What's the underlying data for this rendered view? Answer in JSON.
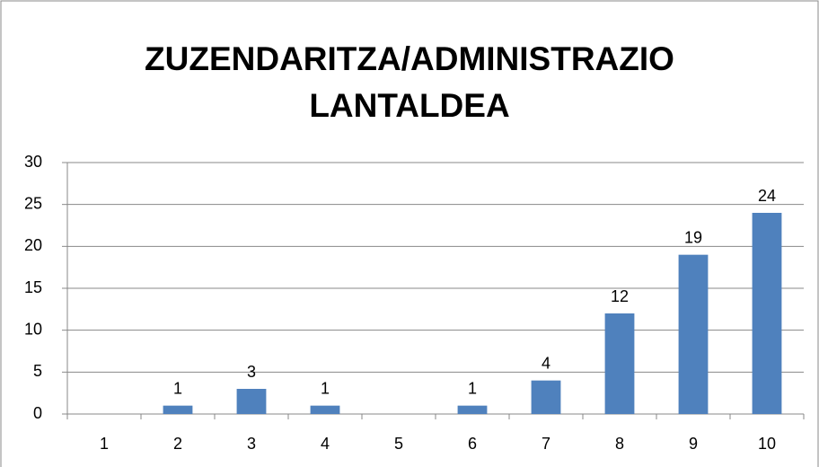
{
  "chart_data": {
    "type": "bar",
    "title": "ZUZENDARITZA/ADMINISTRAZIO LANTALDEA",
    "categories": [
      "1",
      "2",
      "3",
      "4",
      "5",
      "6",
      "7",
      "8",
      "9",
      "10"
    ],
    "values": [
      null,
      1,
      3,
      1,
      null,
      1,
      4,
      12,
      19,
      24
    ],
    "color": "#4f81bd",
    "ylim": [
      0,
      30
    ],
    "yticks": [
      0,
      5,
      10,
      15,
      20,
      25,
      30
    ],
    "grid": true
  }
}
